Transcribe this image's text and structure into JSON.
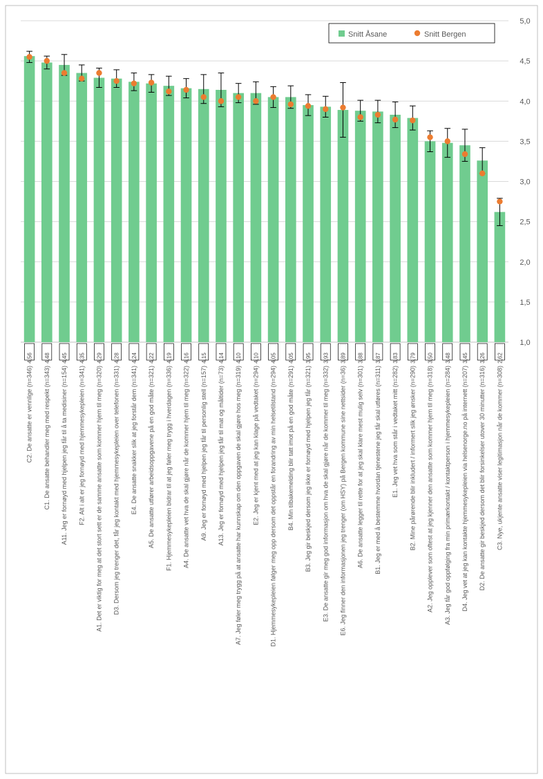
{
  "chart": {
    "type": "bar_with_markers_and_errorbars",
    "background_color": "#ffffff",
    "plot_border_color": "#bfbfbf",
    "grid_color": "#d9d9d9",
    "bar_color": "#70cc8f",
    "marker_color": "#ec7c30",
    "error_bar_color": "#000000",
    "font_family": "Arial",
    "y_axis": {
      "min": 1.0,
      "max": 5.0,
      "ticks": [
        1.0,
        1.5,
        2.0,
        2.5,
        3.0,
        3.5,
        4.0,
        4.5,
        5.0
      ],
      "label_fontsize": 11,
      "label_color": "#595959"
    },
    "data_label_fontsize": 8,
    "category_label_fontsize": 9,
    "legend": {
      "border_color": "#000000",
      "background": "#ffffff",
      "items": [
        {
          "type": "bar",
          "label": "Snitt Åsane",
          "color": "#70cc8f"
        },
        {
          "type": "marker",
          "label": "Snitt Bergen",
          "color": "#ec7c30"
        }
      ]
    },
    "items": [
      {
        "label": "C2. De ansatte er vennlige (n=346)",
        "bar": 4.56,
        "marker": 4.55,
        "elow": 4.48,
        "ehigh": 4.62
      },
      {
        "label": "C1. De ansatte behandler meg med respekt (n=343)",
        "bar": 4.48,
        "marker": 4.5,
        "elow": 4.4,
        "ehigh": 4.56
      },
      {
        "label": "A11. Jeg er fornøyd med hjelpen jeg får til å ta medisiner (n=154)",
        "bar": 4.45,
        "marker": 4.35,
        "elow": 4.32,
        "ehigh": 4.58
      },
      {
        "label": "F2. Alt i alt er jeg fornøyd med hjemmesykepleien (n=341)",
        "bar": 4.35,
        "marker": 4.28,
        "elow": 4.25,
        "ehigh": 4.45
      },
      {
        "label": "A1. Det er viktig for meg at det stort sett er de samme ansatte som kommer hjem til meg (n=320)",
        "bar": 4.29,
        "marker": 4.35,
        "elow": 4.17,
        "ehigh": 4.41
      },
      {
        "label": "D3. Dersom jeg trenger det, får jeg kontakt med hjemmesykepleien over telefonen (n=331)",
        "bar": 4.28,
        "marker": 4.25,
        "elow": 4.17,
        "ehigh": 4.39
      },
      {
        "label": "E4. De ansatte snakker slik at jeg forstår dem (n=341)",
        "bar": 4.24,
        "marker": 4.22,
        "elow": 4.13,
        "ehigh": 4.35
      },
      {
        "label": "A5. De ansatte utfører arbeidsoppgavene på en god måte (n=321)",
        "bar": 4.22,
        "marker": 4.23,
        "elow": 4.11,
        "ehigh": 4.33
      },
      {
        "label": "F1. Hjemmesykepleien bidrar til at jeg føler meg trygg i hverdagen (n=336)",
        "bar": 4.19,
        "marker": 4.12,
        "elow": 4.07,
        "ehigh": 4.31
      },
      {
        "label": "A4. De ansatte vet hva de skal gjøre når de kommer hjem til meg (n=322)",
        "bar": 4.16,
        "marker": 4.14,
        "elow": 4.04,
        "ehigh": 4.28
      },
      {
        "label": "A9. Jeg er fornøyd med hjelpen jeg får til personlig stell (n=157)",
        "bar": 4.15,
        "marker": 4.05,
        "elow": 3.97,
        "ehigh": 4.33
      },
      {
        "label": "A13. Jeg er fornøyd med hjelpen jeg får til mat og måltider (n=73)",
        "bar": 4.14,
        "marker": 4.0,
        "elow": 3.93,
        "ehigh": 4.35
      },
      {
        "label": "A7. Jeg føler meg trygg på at ansatte har kunnskap om den oppgaven de skal gjøre hos meg (n=319)",
        "bar": 4.1,
        "marker": 4.05,
        "elow": 3.98,
        "ehigh": 4.22
      },
      {
        "label": "E2. Jeg er kjent med at jeg kan klage på vedtaket (n=294)",
        "bar": 4.1,
        "marker": 4.0,
        "elow": 3.96,
        "ehigh": 4.24
      },
      {
        "label": "D1. Hjemmesykepleien følger meg opp dersom det oppstår en forandring av min helsetilstand (n=294)",
        "bar": 4.05,
        "marker": 4.05,
        "elow": 3.92,
        "ehigh": 4.18
      },
      {
        "label": "B4. Min tilbakemelding blir tatt imot på en god måte (n=291)",
        "bar": 4.05,
        "marker": 3.96,
        "elow": 3.91,
        "ehigh": 4.19
      },
      {
        "label": "B3. Jeg gir beskjed dersom jeg ikke er fornøyd med hjelpen jeg får (n=321)",
        "bar": 3.95,
        "marker": 3.94,
        "elow": 3.82,
        "ehigh": 4.08
      },
      {
        "label": "E3. De ansatte gir meg god informasjon om hva de skal gjøre når de kommer til meg (n=332)",
        "bar": 3.93,
        "marker": 3.9,
        "elow": 3.8,
        "ehigh": 4.06
      },
      {
        "label": "E6. Jeg finner den informasjonen jeg trenger (om HSY) på Bergen kommune sine nettsider (n=36)",
        "bar": 3.89,
        "marker": 3.92,
        "elow": 3.55,
        "ehigh": 4.23
      },
      {
        "label": "A6. De ansatte legger til rette for at jeg skal klare mest mulig selv (n=301)",
        "bar": 3.88,
        "marker": 3.8,
        "elow": 3.75,
        "ehigh": 4.01
      },
      {
        "label": "B1. Jeg er med å bestemme hvordan tjenestene jeg får skal utføres (n=311)",
        "bar": 3.87,
        "marker": 3.83,
        "elow": 3.73,
        "ehigh": 4.01
      },
      {
        "label": "E1. Jeg vet hva som står i vedtaket mitt (n=282)",
        "bar": 3.83,
        "marker": 3.77,
        "elow": 3.67,
        "ehigh": 3.99
      },
      {
        "label": "B2. Mine pårørende blir inkludert / informert slik jeg ønsker (n=290)",
        "bar": 3.79,
        "marker": 3.76,
        "elow": 3.64,
        "ehigh": 3.94
      },
      {
        "label": "A2. Jeg opplever som oftest at jeg kjenner den ansatte som kommer hjem til meg (n=318)",
        "bar": 3.5,
        "marker": 3.55,
        "elow": 3.37,
        "ehigh": 3.63
      },
      {
        "label": "A3. Jeg får god oppfølging fra min primærkontakt / kontaktperson i hjemmesykepleien (n=284)",
        "bar": 3.48,
        "marker": 3.5,
        "elow": 3.3,
        "ehigh": 3.66
      },
      {
        "label": "D4. Jeg vet at jeg kan kontakte hjemmesykepleien via helsenorge.no på internett (n=207)",
        "bar": 3.45,
        "marker": 3.34,
        "elow": 3.25,
        "ehigh": 3.65
      },
      {
        "label": "D2. De ansatte gir beskjed dersom det blir forsinkelser utover 30 minutter (n=316)",
        "bar": 3.26,
        "marker": 3.1,
        "elow": 3.1,
        "ehigh": 3.42
      },
      {
        "label": "C3. Nye, ukjente ansatte viser legitimasjon når de kommer (n=308)",
        "bar": 2.62,
        "marker": 2.75,
        "elow": 2.45,
        "ehigh": 2.79
      }
    ]
  }
}
